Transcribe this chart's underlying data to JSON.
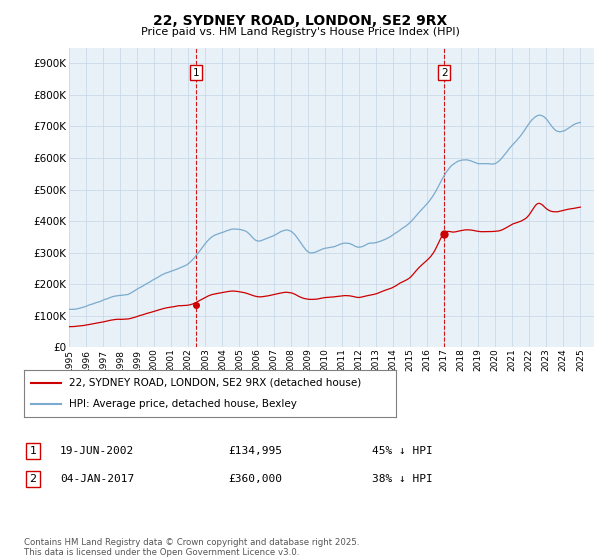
{
  "title": "22, SYDNEY ROAD, LONDON, SE2 9RX",
  "subtitle": "Price paid vs. HM Land Registry's House Price Index (HPI)",
  "legend_line1": "22, SYDNEY ROAD, LONDON, SE2 9RX (detached house)",
  "legend_line2": "HPI: Average price, detached house, Bexley",
  "annotation1_date": "19-JUN-2002",
  "annotation1_price": "£134,995",
  "annotation1_hpi": "45% ↓ HPI",
  "annotation2_date": "04-JAN-2017",
  "annotation2_price": "£360,000",
  "annotation2_hpi": "38% ↓ HPI",
  "footer": "Contains HM Land Registry data © Crown copyright and database right 2025.\nThis data is licensed under the Open Government Licence v3.0.",
  "red_color": "#cc0000",
  "blue_color": "#7aabce",
  "bg_plot_color": "#e8f0f8",
  "annotation_vline_color": "#cc0000",
  "grid_color": "#c5d5e5",
  "background_color": "#ffffff",
  "ylabel_ticks": [
    0,
    100000,
    200000,
    300000,
    400000,
    500000,
    600000,
    700000,
    800000,
    900000
  ],
  "t_sale1": 2002.463,
  "t_sale2": 2017.01,
  "price1": 134995,
  "price2": 360000,
  "hpi_data": {
    "years": [
      1995.0,
      1995.5,
      1996.0,
      1996.5,
      1997.0,
      1997.5,
      1998.0,
      1998.5,
      1999.0,
      1999.5,
      2000.0,
      2000.5,
      2001.0,
      2001.5,
      2002.0,
      2002.5,
      2003.0,
      2003.5,
      2004.0,
      2004.5,
      2005.0,
      2005.5,
      2006.0,
      2006.5,
      2007.0,
      2007.5,
      2008.0,
      2008.5,
      2009.0,
      2009.5,
      2010.0,
      2010.5,
      2011.0,
      2011.5,
      2012.0,
      2012.5,
      2013.0,
      2013.5,
      2014.0,
      2014.5,
      2015.0,
      2015.5,
      2016.0,
      2016.5,
      2017.0,
      2017.5,
      2018.0,
      2018.5,
      2019.0,
      2019.5,
      2020.0,
      2020.5,
      2021.0,
      2021.5,
      2022.0,
      2022.5,
      2023.0,
      2023.5,
      2024.0,
      2024.5,
      2025.0
    ],
    "values": [
      120000,
      122000,
      130000,
      140000,
      150000,
      160000,
      165000,
      170000,
      185000,
      200000,
      215000,
      230000,
      240000,
      250000,
      265000,
      295000,
      330000,
      355000,
      365000,
      375000,
      375000,
      365000,
      340000,
      345000,
      355000,
      370000,
      370000,
      340000,
      305000,
      305000,
      315000,
      320000,
      330000,
      330000,
      320000,
      330000,
      335000,
      345000,
      360000,
      380000,
      400000,
      430000,
      460000,
      500000,
      550000,
      585000,
      600000,
      600000,
      590000,
      590000,
      590000,
      615000,
      650000,
      680000,
      720000,
      745000,
      735000,
      700000,
      695000,
      710000,
      720000
    ]
  },
  "red_data": {
    "years": [
      1995.0,
      1995.5,
      1996.0,
      1996.5,
      1997.0,
      1997.5,
      1998.0,
      1998.5,
      1999.0,
      1999.5,
      2000.0,
      2000.5,
      2001.0,
      2001.5,
      2002.0,
      2002.5,
      2003.0,
      2003.5,
      2004.0,
      2004.5,
      2005.0,
      2005.5,
      2006.0,
      2006.5,
      2007.0,
      2007.5,
      2008.0,
      2008.5,
      2009.0,
      2009.5,
      2010.0,
      2010.5,
      2011.0,
      2011.5,
      2012.0,
      2012.5,
      2013.0,
      2013.5,
      2014.0,
      2014.5,
      2015.0,
      2015.5,
      2016.0,
      2016.5,
      2017.0,
      2017.5,
      2018.0,
      2018.5,
      2019.0,
      2019.5,
      2020.0,
      2020.5,
      2021.0,
      2021.5,
      2022.0,
      2022.5,
      2023.0,
      2023.5,
      2024.0,
      2024.5,
      2025.0
    ],
    "values": [
      65000,
      67000,
      70000,
      75000,
      80000,
      86000,
      88000,
      90000,
      98000,
      107000,
      115000,
      123000,
      128000,
      133000,
      135000,
      145000,
      160000,
      170000,
      175000,
      180000,
      178000,
      172000,
      163000,
      164000,
      170000,
      175000,
      175000,
      163000,
      155000,
      155000,
      160000,
      162000,
      165000,
      165000,
      160000,
      165000,
      170000,
      180000,
      190000,
      205000,
      220000,
      250000,
      275000,
      310000,
      360000,
      365000,
      370000,
      372000,
      368000,
      368000,
      368000,
      375000,
      390000,
      400000,
      420000,
      455000,
      440000,
      430000,
      435000,
      440000,
      445000
    ]
  }
}
